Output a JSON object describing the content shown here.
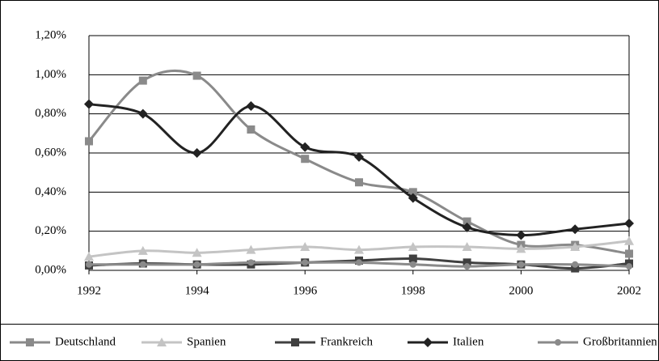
{
  "chart_data": {
    "type": "line",
    "x": [
      1992,
      1993,
      1994,
      1995,
      1996,
      1997,
      1998,
      1999,
      2000,
      2001,
      2002
    ],
    "xlim": [
      1992,
      2002
    ],
    "xticks": [
      1992,
      1994,
      1996,
      1998,
      2000,
      2002
    ],
    "ylim": [
      0,
      1.2
    ],
    "yticks": [
      {
        "value": 0,
        "label": "0,00%"
      },
      {
        "value": 0.2,
        "label": "0,20%"
      },
      {
        "value": 0.4,
        "label": "0,40%"
      },
      {
        "value": 0.6,
        "label": "0,60%"
      },
      {
        "value": 0.8,
        "label": "0,80%"
      },
      {
        "value": 1.0,
        "label": "1,00%"
      },
      {
        "value": 1.2,
        "label": "1,20%"
      }
    ],
    "grid": true,
    "smooth": true,
    "legend": "bottom",
    "series": [
      {
        "name": "Deutschland",
        "color": "#8a8a8a",
        "marker": "square",
        "values": [
          0.66,
          0.97,
          0.995,
          0.72,
          0.57,
          0.45,
          0.4,
          0.25,
          0.13,
          0.13,
          0.085
        ]
      },
      {
        "name": "Spanien",
        "color": "#c4c4c4",
        "marker": "triangle",
        "values": [
          0.07,
          0.1,
          0.09,
          0.105,
          0.12,
          0.105,
          0.12,
          0.12,
          0.11,
          0.12,
          0.15
        ]
      },
      {
        "name": "Frankreich",
        "color": "#404040",
        "marker": "square",
        "values": [
          0.025,
          0.035,
          0.03,
          0.03,
          0.04,
          0.05,
          0.06,
          0.04,
          0.03,
          0.01,
          0.035
        ]
      },
      {
        "name": "Italien",
        "color": "#222222",
        "marker": "diamond",
        "values": [
          0.85,
          0.8,
          0.6,
          0.84,
          0.63,
          0.58,
          0.37,
          0.22,
          0.18,
          0.21,
          0.24
        ]
      },
      {
        "name": "Großbritannien",
        "color": "#8a8a8a",
        "marker": "circle",
        "values": [
          0.03,
          0.03,
          0.03,
          0.04,
          0.04,
          0.04,
          0.03,
          0.02,
          0.03,
          0.03,
          0.02
        ]
      }
    ]
  }
}
